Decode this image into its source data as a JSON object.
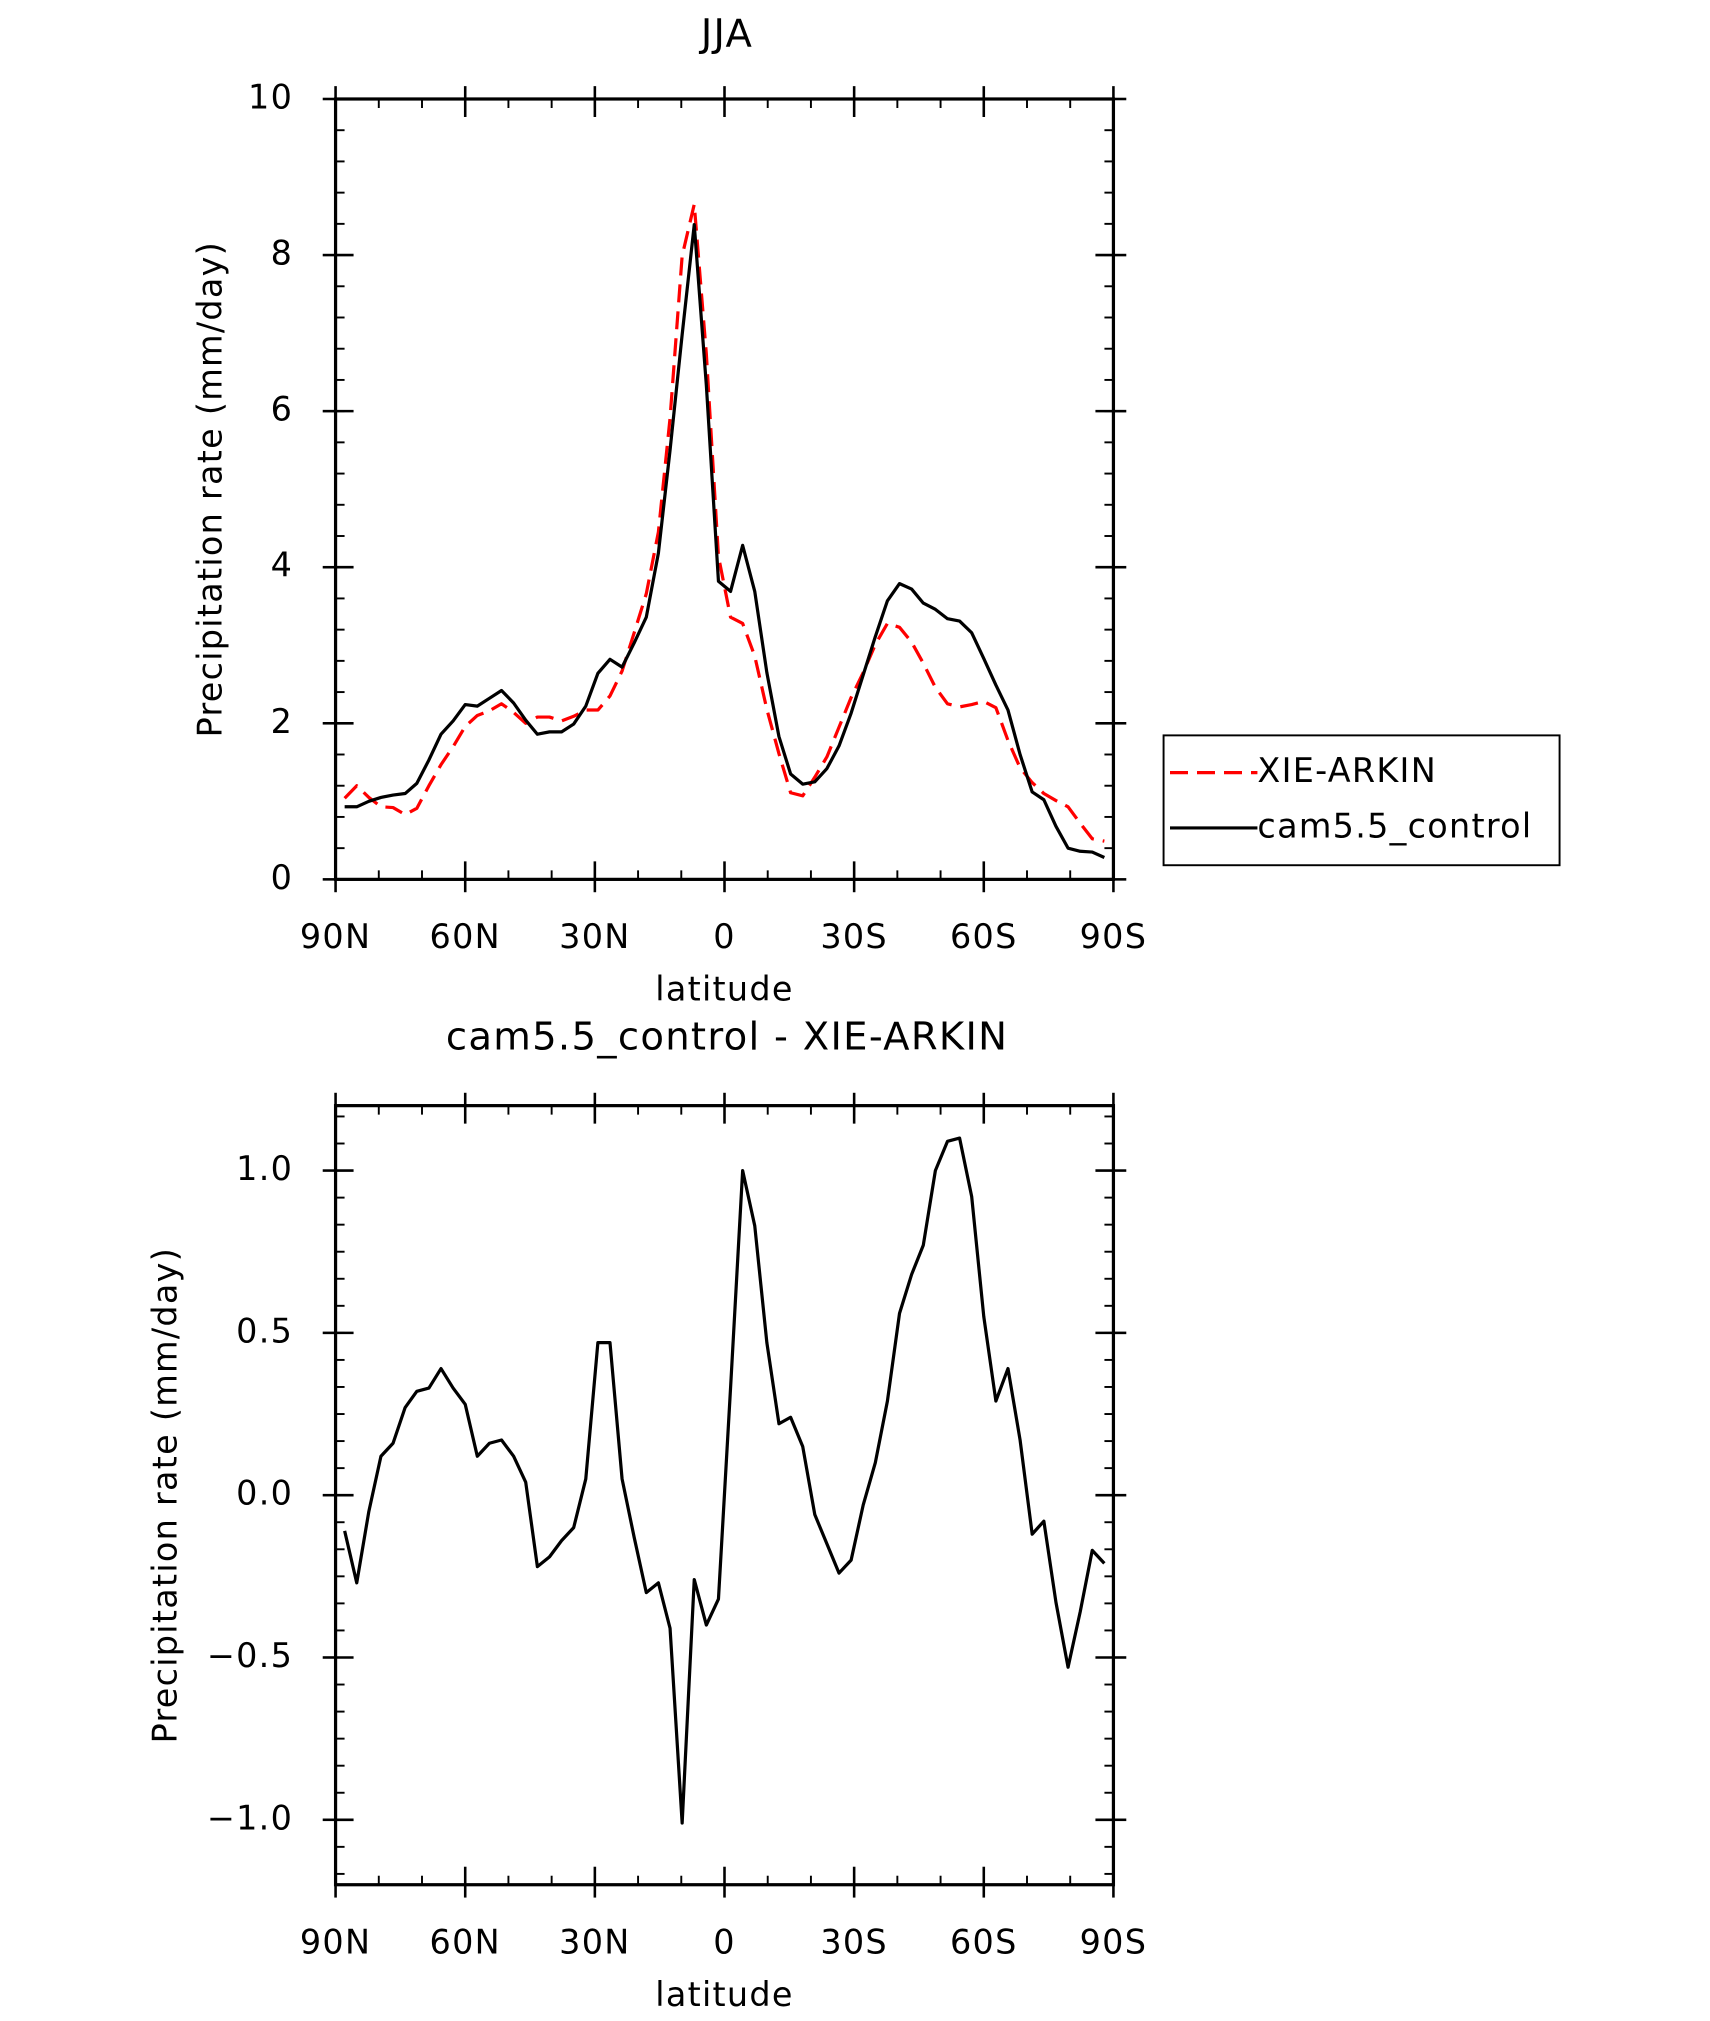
{
  "chart_data": [
    {
      "type": "line",
      "title": "JJA",
      "x_label": "latitude",
      "y_label": "Precipitation rate (mm/day)",
      "x": [
        87.9,
        85.1,
        82.3,
        79.5,
        76.7,
        73.9,
        71.2,
        68.4,
        65.6,
        62.8,
        60.0,
        57.2,
        54.4,
        51.6,
        48.8,
        46.0,
        43.3,
        40.5,
        37.7,
        34.9,
        32.1,
        29.3,
        26.5,
        23.7,
        20.9,
        18.1,
        15.3,
        12.6,
        9.8,
        7.0,
        4.2,
        1.4,
        -1.4,
        -4.2,
        -7.0,
        -9.8,
        -12.6,
        -15.3,
        -18.1,
        -20.9,
        -23.7,
        -26.5,
        -29.3,
        -32.1,
        -34.9,
        -37.7,
        -40.5,
        -43.3,
        -46.0,
        -48.8,
        -51.6,
        -54.4,
        -57.2,
        -60.0,
        -62.8,
        -65.6,
        -68.4,
        -71.2,
        -73.9,
        -76.7,
        -79.5,
        -82.3,
        -85.1,
        -87.9
      ],
      "series": [
        {
          "name": "XIE-ARKIN",
          "color": "#ff0000",
          "linestyle": "dashed",
          "values": [
            1.04,
            1.2,
            1.05,
            0.93,
            0.92,
            0.83,
            0.91,
            1.2,
            1.47,
            1.7,
            1.96,
            2.1,
            2.16,
            2.25,
            2.14,
            2.0,
            2.08,
            2.08,
            2.03,
            2.09,
            2.17,
            2.17,
            2.35,
            2.67,
            3.16,
            3.66,
            4.45,
            5.91,
            7.99,
            8.65,
            6.73,
            4.14,
            3.36,
            3.28,
            2.86,
            2.18,
            1.61,
            1.11,
            1.07,
            1.31,
            1.57,
            1.95,
            2.33,
            2.65,
            3.01,
            3.28,
            3.23,
            3.04,
            2.77,
            2.46,
            2.25,
            2.21,
            2.24,
            2.28,
            2.2,
            1.78,
            1.43,
            1.24,
            1.1,
            1.01,
            0.93,
            0.72,
            0.52,
            0.49
          ]
        },
        {
          "name": "cam5.5_control",
          "color": "#000000",
          "linestyle": "solid",
          "values": [
            0.93,
            0.93,
            1.0,
            1.05,
            1.08,
            1.1,
            1.23,
            1.53,
            1.86,
            2.03,
            2.24,
            2.22,
            2.32,
            2.42,
            2.26,
            2.04,
            1.86,
            1.89,
            1.89,
            1.99,
            2.22,
            2.64,
            2.82,
            2.72,
            3.03,
            3.36,
            4.18,
            5.5,
            6.98,
            8.39,
            6.33,
            3.82,
            3.69,
            4.28,
            3.69,
            2.65,
            1.83,
            1.35,
            1.22,
            1.25,
            1.42,
            1.71,
            2.13,
            2.62,
            3.11,
            3.57,
            3.79,
            3.72,
            3.54,
            3.46,
            3.34,
            3.31,
            3.16,
            2.83,
            2.49,
            2.17,
            1.6,
            1.12,
            1.02,
            0.68,
            0.4,
            0.36,
            0.35,
            0.28
          ]
        }
      ],
      "xlim": [
        90,
        -90
      ],
      "xticks": [
        {
          "value": 90,
          "label": "90N"
        },
        {
          "value": 60,
          "label": "60N"
        },
        {
          "value": 30,
          "label": "30N"
        },
        0,
        {
          "value": -30,
          "label": "30S"
        },
        {
          "value": -60,
          "label": "60S"
        },
        {
          "value": -90,
          "label": "90S"
        }
      ],
      "ylim": [
        0,
        10
      ],
      "yticks": [
        0,
        2,
        4,
        6,
        8,
        10
      ],
      "legend": "right"
    },
    {
      "type": "line",
      "title": "cam5.5_control - XIE-ARKIN",
      "x_label": "latitude",
      "y_label": "Precipitation rate (mm/day)",
      "x": [
        87.9,
        85.1,
        82.3,
        79.5,
        76.7,
        73.9,
        71.2,
        68.4,
        65.6,
        62.8,
        60.0,
        57.2,
        54.4,
        51.6,
        48.8,
        46.0,
        43.3,
        40.5,
        37.7,
        34.9,
        32.1,
        29.3,
        26.5,
        23.7,
        20.9,
        18.1,
        15.3,
        12.6,
        9.8,
        7.0,
        4.2,
        1.4,
        -1.4,
        -4.2,
        -7.0,
        -9.8,
        -12.6,
        -15.3,
        -18.1,
        -20.9,
        -23.7,
        -26.5,
        -29.3,
        -32.1,
        -34.9,
        -37.7,
        -40.5,
        -43.3,
        -46.0,
        -48.8,
        -51.6,
        -54.4,
        -57.2,
        -60.0,
        -62.8,
        -65.6,
        -68.4,
        -71.2,
        -73.9,
        -76.7,
        -79.5,
        -82.3,
        -85.1,
        -87.9
      ],
      "values": [
        -0.11,
        -0.27,
        -0.05,
        0.12,
        0.16,
        0.27,
        0.32,
        0.33,
        0.39,
        0.33,
        0.28,
        0.12,
        0.16,
        0.17,
        0.12,
        0.04,
        -0.22,
        -0.19,
        -0.14,
        -0.1,
        0.05,
        0.47,
        0.47,
        0.05,
        -0.13,
        -0.3,
        -0.27,
        -0.41,
        -1.01,
        -0.26,
        -0.4,
        -0.32,
        0.33,
        1.0,
        0.83,
        0.47,
        0.22,
        0.24,
        0.15,
        -0.06,
        -0.15,
        -0.24,
        -0.2,
        -0.03,
        0.1,
        0.29,
        0.56,
        0.68,
        0.77,
        1.0,
        1.09,
        1.1,
        0.92,
        0.55,
        0.29,
        0.39,
        0.17,
        -0.12,
        -0.08,
        -0.33,
        -0.53,
        -0.36,
        -0.17,
        -0.21
      ],
      "color": "#000000",
      "linestyle": "solid",
      "xlim": [
        90,
        -90
      ],
      "xticks": [
        {
          "value": 90,
          "label": "90N"
        },
        {
          "value": 60,
          "label": "60N"
        },
        {
          "value": 30,
          "label": "30N"
        },
        0,
        {
          "value": -30,
          "label": "30S"
        },
        {
          "value": -60,
          "label": "60S"
        },
        {
          "value": -90,
          "label": "90S"
        }
      ],
      "ylim": [
        -1.2,
        1.2
      ],
      "yticks": [
        {
          "value": -1.0,
          "label": "−1.0"
        },
        {
          "value": -0.5,
          "label": "−0.5"
        },
        {
          "value": 0.0,
          "label": "0.0"
        },
        {
          "value": 0.5,
          "label": "0.5"
        },
        {
          "value": 1.0,
          "label": "1.0"
        }
      ]
    }
  ]
}
